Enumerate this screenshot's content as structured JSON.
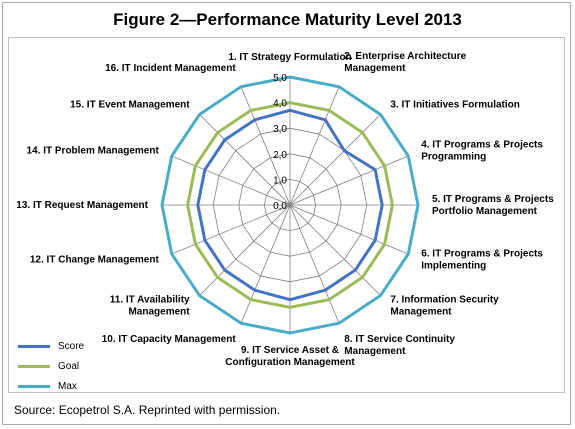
{
  "figure": {
    "title": "Figure 2—Performance Maturity Level 2013",
    "source": "Source:  Ecopetrol S.A. Reprinted with permission."
  },
  "colors": {
    "score": "#4472c4",
    "goal": "#9bbb59",
    "max": "#4bacc6",
    "grid": "#7f7f7f"
  },
  "chart_data": {
    "type": "radar",
    "title": "Figure 2—Performance Maturity Level 2013",
    "categories": [
      "1. IT Strategy Formulation",
      "2. Enterprise Architecture Management",
      "3. IT Initiatives Formulation",
      "4. IT Programs & Projects Programming",
      "5. IT Programs & Projects Portfolio Management",
      "6. IT Programs & Projects Implementing",
      "7. Information Security Management",
      "8. IT Service Continuity Management",
      "9. IT Service Asset & Configuration Management",
      "10. IT Capacity Management",
      "11. IT Availability Management",
      "12. IT Change Management",
      "13. IT Request Management",
      "14. IT Problem Management",
      "15. IT Event Management",
      "16. IT Incident Management"
    ],
    "category_lines": [
      [
        "1. IT Strategy Formulation"
      ],
      [
        "2. Enterprise Architecture",
        "Management"
      ],
      [
        "3. IT Initiatives Formulation"
      ],
      [
        "4. IT Programs & Projects",
        "Programming"
      ],
      [
        "5. IT Programs & Projects",
        "Portfolio Management"
      ],
      [
        "6. IT Programs & Projects",
        "Implementing"
      ],
      [
        "7. Information Security",
        "Management"
      ],
      [
        "8. IT Service Continuity",
        "Management"
      ],
      [
        "9. IT Service Asset &",
        "Configuration Management"
      ],
      [
        "10. IT Capacity Management"
      ],
      [
        "11. IT Availability",
        "Management"
      ],
      [
        "12. IT Change Management"
      ],
      [
        "13. IT Request Management"
      ],
      [
        "14. IT Problem Management"
      ],
      [
        "15. IT Event Management"
      ],
      [
        "16. IT Incident Management"
      ]
    ],
    "series": [
      {
        "name": "Score",
        "values": [
          3.7,
          3.6,
          3.0,
          3.6,
          3.6,
          3.6,
          3.6,
          3.6,
          3.7,
          3.6,
          3.6,
          3.6,
          3.6,
          3.6,
          3.6,
          3.6
        ]
      },
      {
        "name": "Goal",
        "values": [
          4.0,
          4.0,
          4.0,
          4.0,
          4.0,
          4.0,
          4.0,
          4.0,
          4.0,
          4.0,
          4.0,
          4.0,
          4.0,
          4.0,
          4.0,
          4.0
        ]
      },
      {
        "name": "Max",
        "values": [
          5.0,
          5.0,
          5.0,
          5.0,
          5.0,
          5.0,
          5.0,
          5.0,
          5.0,
          5.0,
          5.0,
          5.0,
          5.0,
          5.0,
          5.0,
          5.0
        ]
      }
    ],
    "rlim": [
      0,
      5
    ],
    "ticks": [
      "0,0",
      "1,0",
      "2,0",
      "3,0",
      "4,0",
      "5,0"
    ],
    "tick_values": [
      0,
      1,
      2,
      3,
      4,
      5
    ],
    "grid": true,
    "legend_position": "bottom-left"
  }
}
